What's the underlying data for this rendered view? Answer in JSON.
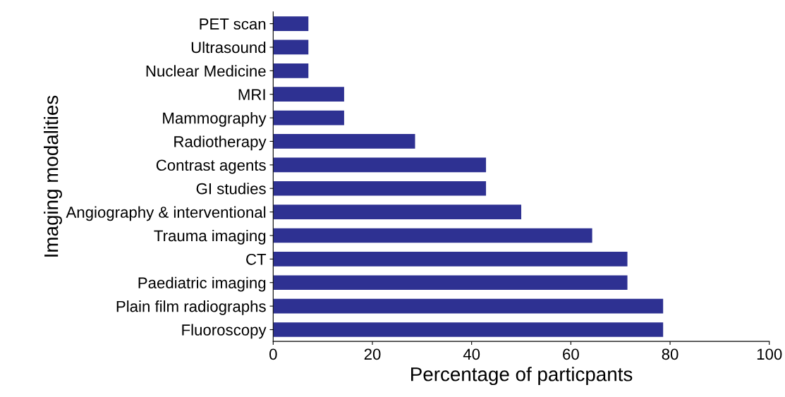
{
  "chart_data": {
    "type": "bar",
    "orientation": "horizontal",
    "xlabel": "Percentage of particpants",
    "ylabel": "Imaging modalities",
    "categories": [
      "PET scan",
      "Ultrasound",
      "Nuclear Medicine",
      "MRI",
      "Mammography",
      "Radiotherapy",
      "Contrast agents",
      "GI studies",
      "Angiography & interventional",
      "Trauma imaging",
      "CT",
      "Paediatric imaging",
      "Plain film radiographs",
      "Fluoroscopy"
    ],
    "values": [
      7.1,
      7.1,
      7.1,
      14.3,
      14.3,
      28.6,
      42.9,
      42.9,
      50,
      64.3,
      71.4,
      71.4,
      78.6,
      78.6
    ],
    "color": "#2e3192",
    "xlim": [
      0,
      100
    ],
    "xticks": [
      0,
      20,
      40,
      60,
      80,
      100
    ],
    "grid": false,
    "legend": false
  }
}
